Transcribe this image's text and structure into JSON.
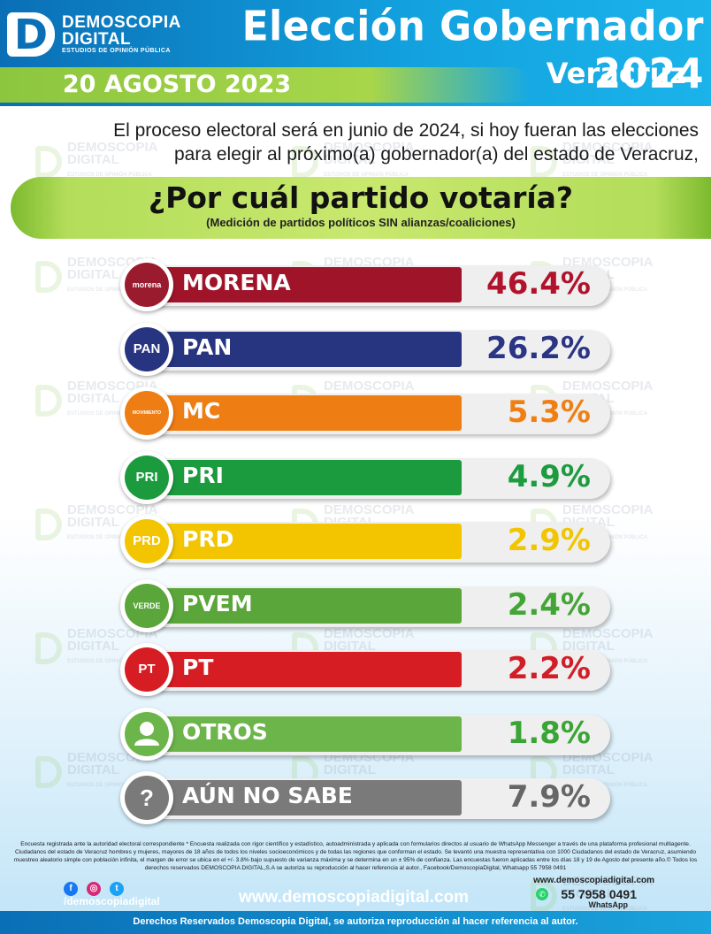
{
  "header": {
    "logo_letter": "D",
    "logo_name_1": "DEMOSCOPIA",
    "logo_name_2": "DIGITAL",
    "logo_tagline": "ESTUDIOS DE OPINIÓN PÚBLICA",
    "title": "Elección Gobernador 2024",
    "state": "Veracruz",
    "date": "20 AGOSTO 2023"
  },
  "intro_line_1": "El proceso electoral será en junio de 2024, si hoy fueran las elecciones",
  "intro_line_2": "para elegir al próximo(a) gobernador(a) del estado de Veracruz,",
  "watermark": {
    "name_1": "DEMOSCOPIA",
    "name_2": "DIGITAL",
    "tagline": "ESTUDIOS DE OPINIÓN PÚBLICA"
  },
  "chart_data": {
    "type": "bar",
    "title": "¿Por cuál partido votaría?",
    "subtitle": "(Medición de partidos políticos SIN alianzas/coaliciones)",
    "categories": [
      "MORENA",
      "PAN",
      "MC",
      "PRI",
      "PRD",
      "PVEM",
      "PT",
      "OTROS",
      "AÚN NO SABE"
    ],
    "values": [
      46.4,
      26.2,
      5.3,
      4.9,
      2.9,
      2.4,
      2.2,
      1.8,
      7.9
    ],
    "value_labels": [
      "46.4%",
      "26.2%",
      "5.3%",
      "4.9%",
      "2.9%",
      "2.4%",
      "2.2%",
      "1.8%",
      "7.9%"
    ],
    "unit": "%",
    "bar_colors": [
      "#a0142a",
      "#27347f",
      "#ee7d14",
      "#1b9a3e",
      "#f2c500",
      "#5aa63a",
      "#d71d24",
      "#6cb54a",
      "#7a7a7a"
    ],
    "value_colors": [
      "#b0132b",
      "#2b3585",
      "#f07f13",
      "#1d9b3f",
      "#f2c500",
      "#43a535",
      "#d21e26",
      "#3aa535",
      "#666666"
    ],
    "badges": [
      {
        "text": "morena",
        "icon": "morena-logo-icon",
        "color": "#9b1b2e"
      },
      {
        "text": "PAN",
        "icon": "pan-logo-icon",
        "color": "#27347f"
      },
      {
        "text": "MOVIMIENTO CIUDADANO",
        "icon": "mc-eagle-icon",
        "color": "#ee7d14"
      },
      {
        "text": "PRI",
        "icon": "pri-logo-icon",
        "color": "#1b9a3e"
      },
      {
        "text": "PRD",
        "icon": "prd-sun-icon",
        "color": "#f2c500"
      },
      {
        "text": "VERDE",
        "icon": "pvem-toucan-icon",
        "color": "#5aa63a"
      },
      {
        "text": "PT",
        "icon": "pt-star-icon",
        "color": "#d71d24"
      },
      {
        "text": "",
        "icon": "person-icon",
        "color": "#6cb54a"
      },
      {
        "text": "?",
        "icon": "question-icon",
        "color": "#7a7a7a"
      }
    ]
  },
  "footer": {
    "fine_print": "Encuesta registrada ante la autoridad electoral correspondiente * Encuesta realizada con rigor científico y estadístico, autoadministrada y aplicada con formularios directos al usuario de WhatsApp Messenger a través de una plataforma profesional multiagente. Ciudadanos del estado de Veracruz hombres y mujeres, mayores de 18 años de todos los niveles socioeconómicos y de todas las regiones que conforman el estado. Se levantó una muestra representativa con 1000 Ciudadanos del estado de Veracruz, asumiendo muestreo aleatorio simple con población infinita, el margen de error se ubica en el +/- 3.8% bajo supuesto de varianza máxima y se determina en un ± 95% de confianza. Las encuestas fueron aplicadas entre los días 18 y 19 de Agosto del presente año.© Todos los derechos reservados DEMOSCOPIA DIGITAL,S.A se autoriza su reproducción al hacer referencia al autor., Facebook/DemoscopiaDigital, Whatsapp 55 7958 0491",
    "social_handle": "/demoscopiadigital",
    "website": "www.demoscopiadigital.com",
    "website_small": "www.demoscopiadigital.com",
    "phone": "55 7958 0491",
    "whatsapp_label": "WhatsApp",
    "rights": "Derechos Reservados Demoscopia Digital, se autoriza reproducción al hacer referencia al autor."
  }
}
